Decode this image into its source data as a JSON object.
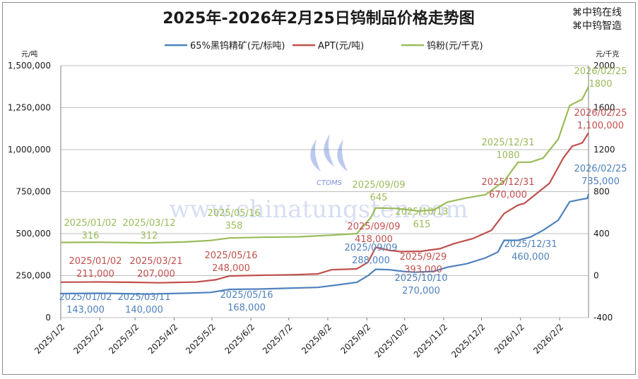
{
  "chart_data": {
    "type": "line",
    "title": "2025年-2026年2月25日钨制品价格走势图",
    "brand": [
      "中钨在线",
      "中钨智造"
    ],
    "watermark": "www.chinatungsten.com",
    "watermark_logo": "CTOMS",
    "left_unit": "元/吨",
    "right_unit": "元/千克",
    "ylim_left": [
      0,
      1500000
    ],
    "ylim_right": [
      -400,
      2000
    ],
    "left_ticks": [
      "1,500,000",
      "1,250,000",
      "1,000,000",
      "750,000",
      "500,000",
      "250,000",
      "0"
    ],
    "right_ticks": [
      "2000",
      "1600",
      "1200",
      "800",
      "400",
      "0",
      "-400"
    ],
    "x_labels": [
      "2025/1/2",
      "2025/2/2",
      "2025/3/2",
      "2025/4/2",
      "2025/5/2",
      "2025/6/2",
      "2025/7/2",
      "2025/8/2",
      "2025/9/2",
      "2025/10/2",
      "2025/11/2",
      "2025/12/2",
      "2026/1/2",
      "2026/2/2"
    ],
    "series": [
      {
        "name": "65%黑钨精矿(元/标吨)",
        "axis": "left",
        "color": "#4f81bd",
        "points": [
          [
            "2025-01-02",
            143000
          ],
          [
            "2025-02-01",
            145000
          ],
          [
            "2025-02-20",
            143000
          ],
          [
            "2025-03-11",
            140000
          ],
          [
            "2025-04-10",
            145000
          ],
          [
            "2025-05-01",
            150000
          ],
          [
            "2025-05-16",
            168000
          ],
          [
            "2025-06-10",
            170000
          ],
          [
            "2025-07-01",
            175000
          ],
          [
            "2025-07-25",
            180000
          ],
          [
            "2025-08-10",
            195000
          ],
          [
            "2025-08-25",
            210000
          ],
          [
            "2025-09-03",
            250000
          ],
          [
            "2025-09-09",
            288000
          ],
          [
            "2025-09-20",
            285000
          ],
          [
            "2025-10-01",
            275000
          ],
          [
            "2025-10-10",
            270000
          ],
          [
            "2025-10-25",
            275000
          ],
          [
            "2025-11-05",
            300000
          ],
          [
            "2025-11-20",
            320000
          ],
          [
            "2025-12-05",
            355000
          ],
          [
            "2025-12-15",
            390000
          ],
          [
            "2025-12-20",
            460000
          ],
          [
            "2025-12-31",
            460000
          ],
          [
            "2026-01-10",
            480000
          ],
          [
            "2026-01-20",
            520000
          ],
          [
            "2026-02-01",
            580000
          ],
          [
            "2026-02-10",
            690000
          ],
          [
            "2026-02-20",
            705000
          ],
          [
            "2026-02-24",
            710000
          ],
          [
            "2026-02-25",
            735000
          ]
        ]
      },
      {
        "name": "APT(元/吨)",
        "axis": "left",
        "color": "#c0504d",
        "points": [
          [
            "2025-01-02",
            211000
          ],
          [
            "2025-02-01",
            212000
          ],
          [
            "2025-03-01",
            210000
          ],
          [
            "2025-03-21",
            207000
          ],
          [
            "2025-04-20",
            212000
          ],
          [
            "2025-05-05",
            225000
          ],
          [
            "2025-05-16",
            248000
          ],
          [
            "2025-06-10",
            252000
          ],
          [
            "2025-07-05",
            255000
          ],
          [
            "2025-07-25",
            260000
          ],
          [
            "2025-08-05",
            285000
          ],
          [
            "2025-08-25",
            290000
          ],
          [
            "2025-09-03",
            330000
          ],
          [
            "2025-09-09",
            418000
          ],
          [
            "2025-09-20",
            400000
          ],
          [
            "2025-09-29",
            393000
          ],
          [
            "2025-10-15",
            395000
          ],
          [
            "2025-10-30",
            410000
          ],
          [
            "2025-11-10",
            440000
          ],
          [
            "2025-11-25",
            470000
          ],
          [
            "2025-12-10",
            520000
          ],
          [
            "2025-12-20",
            620000
          ],
          [
            "2025-12-31",
            670000
          ],
          [
            "2026-01-05",
            680000
          ],
          [
            "2026-01-15",
            740000
          ],
          [
            "2026-01-25",
            800000
          ],
          [
            "2026-02-05",
            950000
          ],
          [
            "2026-02-12",
            1020000
          ],
          [
            "2026-02-20",
            1040000
          ],
          [
            "2026-02-25",
            1100000
          ]
        ]
      },
      {
        "name": "钨粉(元/千克)",
        "axis": "right",
        "color": "#9bbb59",
        "points": [
          [
            "2025-01-02",
            316
          ],
          [
            "2025-02-01",
            318
          ],
          [
            "2025-03-12",
            312
          ],
          [
            "2025-04-10",
            320
          ],
          [
            "2025-05-01",
            335
          ],
          [
            "2025-05-16",
            358
          ],
          [
            "2025-06-10",
            365
          ],
          [
            "2025-07-10",
            370
          ],
          [
            "2025-08-05",
            385
          ],
          [
            "2025-08-25",
            400
          ],
          [
            "2025-09-05",
            550
          ],
          [
            "2025-09-09",
            645
          ],
          [
            "2025-09-25",
            640
          ],
          [
            "2025-10-13",
            615
          ],
          [
            "2025-10-25",
            625
          ],
          [
            "2025-11-05",
            700
          ],
          [
            "2025-11-20",
            740
          ],
          [
            "2025-12-05",
            770
          ],
          [
            "2025-12-20",
            900
          ],
          [
            "2025-12-31",
            1080
          ],
          [
            "2026-01-10",
            1080
          ],
          [
            "2026-01-20",
            1120
          ],
          [
            "2026-02-01",
            1300
          ],
          [
            "2026-02-10",
            1620
          ],
          [
            "2026-02-20",
            1680
          ],
          [
            "2026-02-25",
            1800
          ]
        ]
      }
    ],
    "annotations": [
      {
        "text": "2025/01/02",
        "value_text": "316",
        "series": 2
      },
      {
        "text": "2025/03/12",
        "value_text": "312",
        "series": 2
      },
      {
        "text": "2025/05/16",
        "value_text": "358",
        "series": 2
      },
      {
        "text": "2025/09/09",
        "value_text": "645",
        "series": 2
      },
      {
        "text": "2025/10/13",
        "value_text": "615",
        "series": 2
      },
      {
        "text": "2025/12/31",
        "value_text": "1080",
        "series": 2
      },
      {
        "text": "2026/02/25",
        "value_text": "1800",
        "series": 2
      },
      {
        "text": "2025/01/02",
        "value_text": "211,000",
        "series": 1
      },
      {
        "text": "2025/03/21",
        "value_text": "207,000",
        "series": 1
      },
      {
        "text": "2025/05/16",
        "value_text": "248,000",
        "series": 1
      },
      {
        "text": "2025/09/09",
        "value_text": "418,000",
        "series": 1
      },
      {
        "text": "2025/9/29",
        "value_text": "393,000",
        "series": 1
      },
      {
        "text": "2025/12/31",
        "value_text": "670,000",
        "series": 1
      },
      {
        "text": "2026/02/25",
        "value_text": "1,100,000",
        "series": 1
      },
      {
        "text": "2025/01/02",
        "value_text": "143,000",
        "series": 0
      },
      {
        "text": "2025/03/11",
        "value_text": "140,000",
        "series": 0
      },
      {
        "text": "2025/05/16",
        "value_text": "168,000",
        "series": 0
      },
      {
        "text": "2025/09/09",
        "value_text": "288,000",
        "series": 0
      },
      {
        "text": "2025/10/10",
        "value_text": "270,000",
        "series": 0
      },
      {
        "text": "2025/12/31",
        "value_text": "460,000",
        "series": 0
      },
      {
        "text": "2026/02/25",
        "value_text": "735,000",
        "series": 0
      }
    ],
    "grid": true,
    "legend_position": "top"
  }
}
